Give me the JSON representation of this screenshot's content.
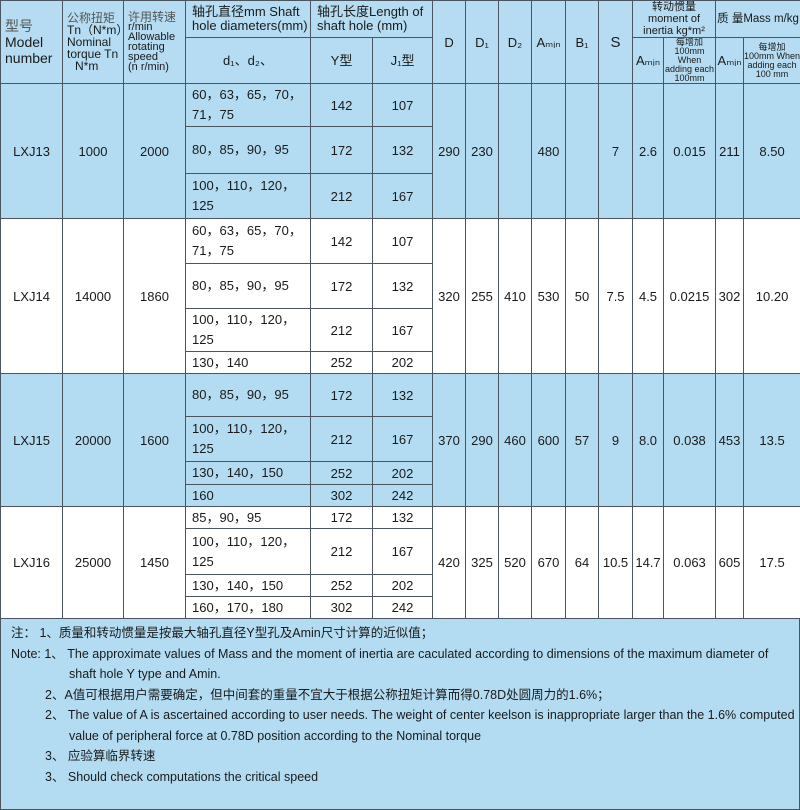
{
  "header": {
    "model": [
      "型号",
      "Model",
      "number"
    ],
    "torque": [
      "公称扭矩",
      "Tn（N*m）",
      "Nominal",
      "torque Tn",
      "N*m"
    ],
    "speed": [
      "许用转速",
      "r/min",
      "Allowable",
      "rotating",
      "speed",
      "(n r/min)"
    ],
    "shaft_hole_diameters": "轴孔直径mm Shaft hole diameters(mm)",
    "d_sub": "d₁、d₂、",
    "length_of_shaft_hole": "轴孔长度Length of shaft hole (mm)",
    "y_type": "Y型",
    "j1_type": "J₁型",
    "D": "D",
    "D1": "D₁",
    "D2": "D₂",
    "Amin": "Aₘᵢₙ",
    "B1": "B₁",
    "S": "S",
    "moment_of_inertia": "转动惯量moment of inertia kg*m²",
    "mass": "质 量Mass m/kg",
    "amin_sub": "Aₘᵢₙ",
    "per_100mm": "每增加100mm When adding each 100mm",
    "per_100mm_mass": "每增加100mm When adding each 100 mm"
  },
  "rows": [
    {
      "model": "LXJ13",
      "torque": "1000",
      "speed": "2000",
      "D": "290",
      "D1": "230",
      "D2": "",
      "Amin": "480",
      "B1": "",
      "S": "7",
      "inertia_amin": "2.6",
      "inertia_per100": "0.015",
      "mass_amin": "211",
      "mass_per100": "8.50",
      "holes": [
        [
          "60，63，65，70，71，75",
          "142",
          "107"
        ],
        [
          "80，85，90，95",
          "172",
          "132"
        ],
        [
          "100，110，120，125",
          "212",
          "167"
        ]
      ]
    },
    {
      "model": "LXJ14",
      "torque": "14000",
      "speed": "1860",
      "D": "320",
      "D1": "255",
      "D2": "410",
      "Amin": "530",
      "B1": "50",
      "S": "7.5",
      "inertia_amin": "4.5",
      "inertia_per100": "0.0215",
      "mass_amin": "302",
      "mass_per100": "10.20",
      "holes": [
        [
          "60，63，65，70，71，75",
          "142",
          "107"
        ],
        [
          "80，85，90，95",
          "172",
          "132"
        ],
        [
          "100，110，120，125",
          "212",
          "167"
        ],
        [
          "130，140",
          "252",
          "202"
        ]
      ]
    },
    {
      "model": "LXJ15",
      "torque": "20000",
      "speed": "1600",
      "D": "370",
      "D1": "290",
      "D2": "460",
      "Amin": "600",
      "B1": "57",
      "S": "9",
      "inertia_amin": "8.0",
      "inertia_per100": "0.038",
      "mass_amin": "453",
      "mass_per100": "13.5",
      "holes": [
        [
          "80，85，90，95",
          "172",
          "132"
        ],
        [
          "100，110，120，125",
          "212",
          "167"
        ],
        [
          "130，140，150",
          "252",
          "202"
        ],
        [
          "160",
          "302",
          "242"
        ]
      ]
    },
    {
      "model": "LXJ16",
      "torque": "25000",
      "speed": "1450",
      "D": "420",
      "D1": "325",
      "D2": "520",
      "Amin": "670",
      "B1": "64",
      "S": "10.5",
      "inertia_amin": "14.7",
      "inertia_per100": "0.063",
      "mass_amin": "605",
      "mass_per100": "17.5",
      "holes": [
        [
          "85，90，95",
          "172",
          "132"
        ],
        [
          "100，110，120，125",
          "212",
          "167"
        ],
        [
          "130，140，150",
          "252",
          "202"
        ],
        [
          "160，170，180",
          "302",
          "242"
        ]
      ]
    }
  ],
  "notes": [
    "注：  1、质量和转动惯量是按最大轴孔直径Y型孔及Amin尺寸计算的近似值；",
    "Note: 1、 The approximate values of Mass and the moment of inertia are caculated according to dimensions of the maximum diameter of",
    "shaft hole Y type and Amin.",
    "2、A值可根据用户需要确定，但中间套的重量不宜大于根据公称扭矩计算而得0.78D处圆周力的1.6%；",
    "2、 The value of A is ascertained according to user needs. The weight of center keelson is inappropriate larger than the 1.6% computed",
    "value of peripheral force at 0.78D position according to the Nominal torque",
    "3、 应验算临界转速",
    "3、 Should check computations the critical speed"
  ],
  "colors": {
    "row_blue": "#b3dcf2",
    "header_blue": "#b5dcf2",
    "border": "#4a5560"
  }
}
